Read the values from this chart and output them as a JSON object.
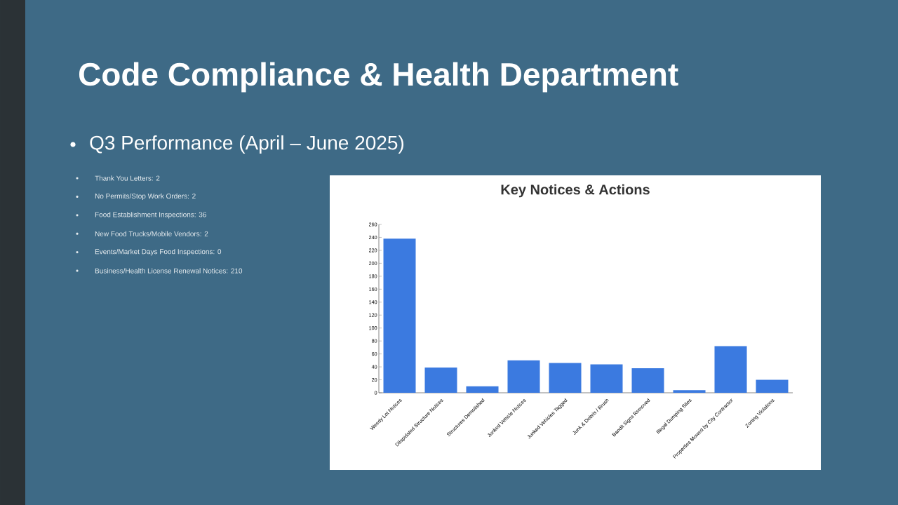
{
  "chart_data": {
    "type": "bar",
    "title": "Key Notices & Actions",
    "categories": [
      "Weedy Lot Notices",
      "Dilapidated Structure Notices",
      "Structures Demolished",
      "Junked Vehicle Notices",
      "Junked Vehicles Tagged",
      "Junk & Debris / Brush",
      "Bandit Signs Removed",
      "Illegal Dumping Sites",
      "Properties Mowed by City Contractor",
      "Zoning Violations"
    ],
    "values": [
      238,
      39,
      10,
      50,
      46,
      44,
      38,
      4,
      72,
      20
    ],
    "color": "#3b7ae0",
    "ylim": [
      0,
      260
    ],
    "yticks": [
      0,
      20,
      40,
      60,
      80,
      100,
      120,
      140,
      160,
      180,
      200,
      220,
      240,
      260
    ],
    "annotations": [
      "Code Compliance & Health Department",
      "Q3 Performance (April – June 2025)",
      "Thank You Letters: 2",
      "No Permits/Stop Work Orders: 2",
      "Food Establishment Inspections: 36",
      "New Food Trucks/Mobile Vendors: 2",
      "Events/Market Days Food Inspections: 0",
      "Business/Health License Renewal Notices: 210"
    ]
  }
}
